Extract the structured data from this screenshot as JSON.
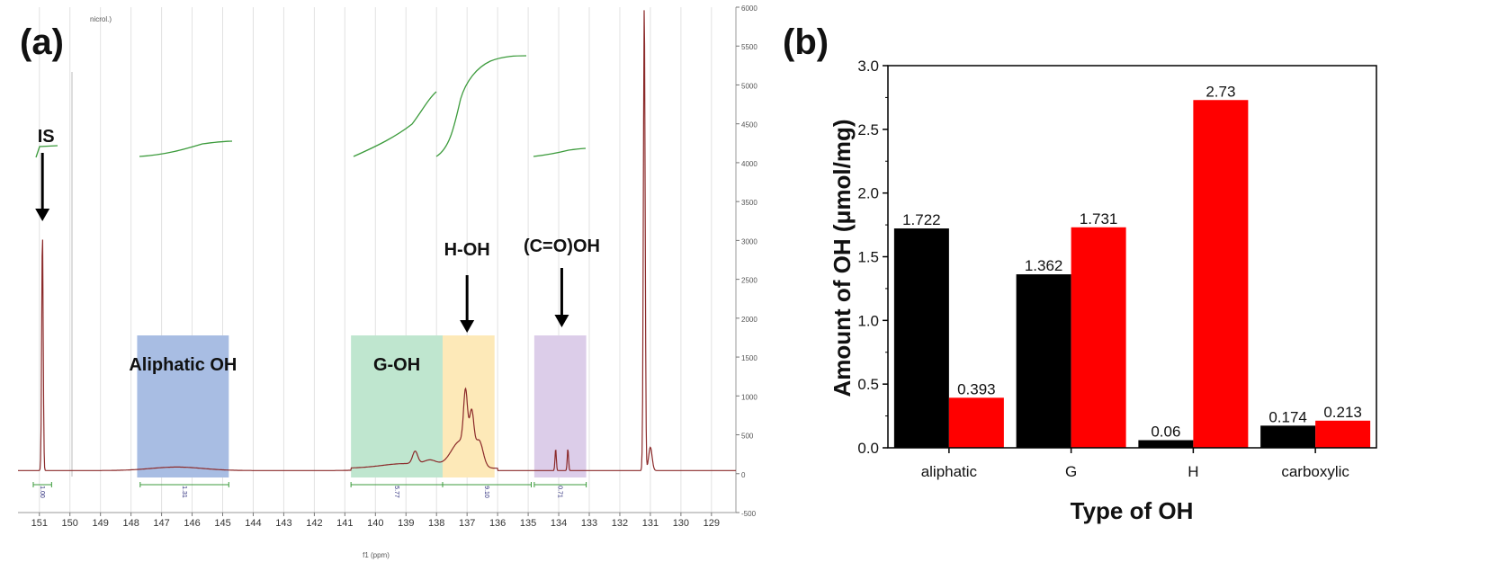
{
  "panels": {
    "a_label": "(a)",
    "b_label": "(b)"
  },
  "colors": {
    "spectrum": "#8b2a2a",
    "integral": "#3c9b3c",
    "black_series": "#000000",
    "red_series": "#ff0000",
    "aliphatic_box": "#a8bde3",
    "g_box": "#bfe6cf",
    "h_box": "#fde9b8",
    "cooh_box": "#dccde9"
  },
  "chart_data": [
    {
      "type": "line",
      "title": "",
      "corner_text": "nicrol.)",
      "xlabel": "f1 (ppm)",
      "ylabel": "",
      "x_reversed": true,
      "xlim": [
        151.7,
        128.2
      ],
      "ylim": [
        -500,
        6000
      ],
      "x_ticks": [
        "151",
        "150",
        "149",
        "148",
        "147",
        "146",
        "145",
        "144",
        "143",
        "142",
        "141",
        "140",
        "139",
        "138",
        "137",
        "136",
        "135",
        "134",
        "133",
        "132",
        "131",
        "130",
        "129"
      ],
      "y_ticks": [
        "6000",
        "5500",
        "5000",
        "4500",
        "4000",
        "3500",
        "3000",
        "2500",
        "2000",
        "1500",
        "1000",
        "500",
        "0",
        "-500"
      ],
      "peaks": [
        {
          "ppm": 150.9,
          "height": 3050
        },
        {
          "ppm": 131.2,
          "height": 6000
        }
      ],
      "annotations": [
        {
          "text": "IS",
          "ppm": 150.9
        },
        {
          "text": "H-OH",
          "ppm": 137.0
        },
        {
          "text": "(C=O)OH",
          "ppm": 133.9
        }
      ],
      "regions": [
        {
          "label": "Aliphatic OH",
          "from": 147.8,
          "to": 144.8
        },
        {
          "label": "G-OH",
          "from": 140.8,
          "to": 137.8
        },
        {
          "label": "",
          "from": 137.8,
          "to": 136.1
        },
        {
          "label": "",
          "from": 134.8,
          "to": 133.1
        }
      ],
      "integrals": [
        {
          "value": "1.00",
          "from": 151.2,
          "to": 150.6
        },
        {
          "value": "1.31",
          "from": 147.7,
          "to": 144.8
        },
        {
          "value": "5.77",
          "from": 140.8,
          "to": 137.8
        },
        {
          "value": "9.10",
          "from": 137.8,
          "to": 134.9
        },
        {
          "value": "0.71",
          "from": 134.8,
          "to": 133.1
        }
      ]
    },
    {
      "type": "bar",
      "title": "",
      "xlabel": "Type of OH",
      "ylabel": "Amount of OH (μmol/mg)",
      "ylim": [
        0,
        3.0
      ],
      "y_ticks": [
        "0.0",
        "0.5",
        "1.0",
        "1.5",
        "2.0",
        "2.5",
        "3.0"
      ],
      "categories": [
        "aliphatic",
        "G",
        "H",
        "carboxylic"
      ],
      "series": [
        {
          "color": "#000000",
          "values": [
            1.722,
            1.362,
            0.06,
            0.174
          ],
          "labels": [
            "1.722",
            "1.362",
            "0.06",
            "0.174"
          ]
        },
        {
          "color": "#ff0000",
          "values": [
            0.393,
            1.731,
            2.73,
            0.213
          ],
          "labels": [
            "0.393",
            "1.731",
            "2.73",
            "0.213"
          ]
        }
      ]
    }
  ]
}
